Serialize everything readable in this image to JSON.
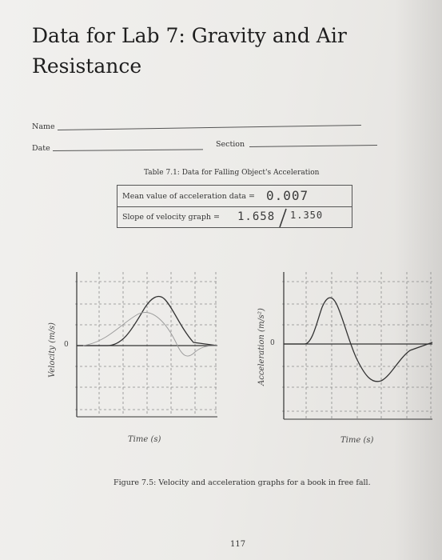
{
  "page": {
    "title": "Data for Lab 7: Gravity and Air Resistance",
    "page_number": "117"
  },
  "form": {
    "name_label": "Name",
    "date_label": "Date",
    "section_label": "Section"
  },
  "table": {
    "caption": "Table 7.1: Data for Falling Object's Acceleration",
    "rows": [
      {
        "label": "Mean value of acceleration data =",
        "handwritten": "0.007"
      },
      {
        "label": "Slope of velocity graph =",
        "handwritten_a": "1.658",
        "handwritten_b": "1.350"
      }
    ]
  },
  "graphs": {
    "velocity": {
      "ylabel": "Velocity (m/s)",
      "xlabel": "Time (s)",
      "zero_label": "0"
    },
    "acceleration": {
      "ylabel": "Acceleration (m/s²)",
      "xlabel": "Time (s)",
      "zero_label": "0"
    }
  },
  "figure": {
    "caption": "Figure 7.5: Velocity and acceleration graphs for a book in free fall."
  },
  "colors": {
    "ink": "#2a2a2a",
    "paper": "#eeedea",
    "grid": "#8a8a8a",
    "curve": "#333333"
  }
}
